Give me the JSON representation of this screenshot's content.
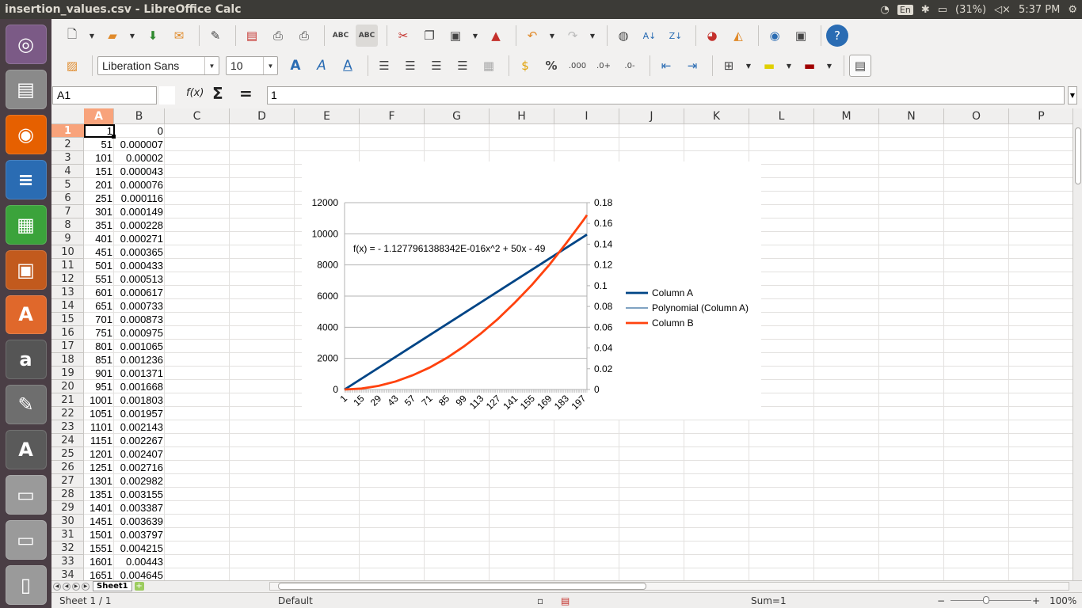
{
  "window": {
    "title": "insertion_values.csv - LibreOffice Calc"
  },
  "system": {
    "keyboard": "En",
    "battery": "(31%)",
    "time": "5:37 PM"
  },
  "launcher": {
    "items": [
      {
        "name": "ubuntu-dash-icon",
        "glyph": "◎",
        "color": "#7b5a86"
      },
      {
        "name": "files-icon",
        "glyph": "▤",
        "color": "#8a8a8a"
      },
      {
        "name": "firefox-icon",
        "glyph": "◉",
        "color": "#e66000"
      },
      {
        "name": "writer-icon",
        "glyph": "≡",
        "color": "#2a6cb3"
      },
      {
        "name": "calc-icon",
        "glyph": "▦",
        "color": "#3ba33b"
      },
      {
        "name": "impress-icon",
        "glyph": "▣",
        "color": "#c25a1d"
      },
      {
        "name": "software-center-icon",
        "glyph": "A",
        "color": "#e0682b"
      },
      {
        "name": "amazon-icon",
        "glyph": "a",
        "color": "#555555"
      },
      {
        "name": "system-settings-icon",
        "glyph": "✎",
        "color": "#6e6e6e"
      },
      {
        "name": "software-updater-icon",
        "glyph": "A",
        "color": "#5a5a5a"
      },
      {
        "name": "drive-icon-1",
        "glyph": "▭",
        "color": "#9a9a9a"
      },
      {
        "name": "drive-icon-2",
        "glyph": "▭",
        "color": "#9a9a9a"
      },
      {
        "name": "trash-icon",
        "glyph": "▯",
        "color": "#9a9a9a"
      }
    ]
  },
  "format_bar": {
    "font_name": "Liberation Sans",
    "font_size": "10"
  },
  "formula_bar": {
    "cell_ref": "A1",
    "content": "1",
    "function_wizard": "f(x)",
    "sum": "Σ",
    "equals": "="
  },
  "columns": [
    "A",
    "B",
    "C",
    "D",
    "E",
    "F",
    "G",
    "H",
    "I",
    "J",
    "K",
    "L",
    "M",
    "N",
    "O",
    "P"
  ],
  "rows": [
    [
      "1",
      "0"
    ],
    [
      "51",
      "0.000007"
    ],
    [
      "101",
      "0.00002"
    ],
    [
      "151",
      "0.000043"
    ],
    [
      "201",
      "0.000076"
    ],
    [
      "251",
      "0.000116"
    ],
    [
      "301",
      "0.000149"
    ],
    [
      "351",
      "0.000228"
    ],
    [
      "401",
      "0.000271"
    ],
    [
      "451",
      "0.000365"
    ],
    [
      "501",
      "0.000433"
    ],
    [
      "551",
      "0.000513"
    ],
    [
      "601",
      "0.000617"
    ],
    [
      "651",
      "0.000733"
    ],
    [
      "701",
      "0.000873"
    ],
    [
      "751",
      "0.000975"
    ],
    [
      "801",
      "0.001065"
    ],
    [
      "851",
      "0.001236"
    ],
    [
      "901",
      "0.001371"
    ],
    [
      "951",
      "0.001668"
    ],
    [
      "1001",
      "0.001803"
    ],
    [
      "1051",
      "0.001957"
    ],
    [
      "1101",
      "0.002143"
    ],
    [
      "1151",
      "0.002267"
    ],
    [
      "1201",
      "0.002407"
    ],
    [
      "1251",
      "0.002716"
    ],
    [
      "1301",
      "0.002982"
    ],
    [
      "1351",
      "0.003155"
    ],
    [
      "1401",
      "0.003387"
    ],
    [
      "1451",
      "0.003639"
    ],
    [
      "1501",
      "0.003797"
    ],
    [
      "1551",
      "0.004215"
    ],
    [
      "1601",
      "0.00443"
    ],
    [
      "1651",
      "0.004645"
    ]
  ],
  "chart_data": {
    "type": "line",
    "title": "",
    "trendline_label": "f(x) =  - 1.1277961388342E-016x^2 + 50x - 49",
    "x": {
      "ticks": [
        "1",
        "15",
        "29",
        "43",
        "57",
        "71",
        "85",
        "99",
        "113",
        "127",
        "141",
        "155",
        "169",
        "183",
        "197"
      ],
      "range": [
        1,
        200
      ]
    },
    "y_left": {
      "ticks": [
        "0",
        "2000",
        "4000",
        "6000",
        "8000",
        "10000",
        "12000"
      ],
      "range": [
        0,
        12000
      ]
    },
    "y_right": {
      "ticks": [
        "0",
        "0.02",
        "0.04",
        "0.06",
        "0.08",
        "0.1",
        "0.12",
        "0.14",
        "0.16",
        "0.18"
      ],
      "range": [
        0,
        0.18
      ]
    },
    "series": [
      {
        "name": "Column A",
        "color": "#004586",
        "axis": "left",
        "points": [
          [
            1,
            1
          ],
          [
            200,
            9951
          ]
        ]
      },
      {
        "name": "Polynomial (Column A)",
        "color": "#004586",
        "axis": "left",
        "trend": true,
        "points": [
          [
            1,
            1
          ],
          [
            200,
            9951
          ]
        ]
      },
      {
        "name": "Column B",
        "color": "#ff420e",
        "axis": "right",
        "points": [
          [
            1,
            0
          ],
          [
            15,
            0.0009
          ],
          [
            29,
            0.0035
          ],
          [
            43,
            0.0078
          ],
          [
            57,
            0.0137
          ],
          [
            71,
            0.0212
          ],
          [
            85,
            0.0305
          ],
          [
            99,
            0.0415
          ],
          [
            113,
            0.054
          ],
          [
            127,
            0.068
          ],
          [
            141,
            0.084
          ],
          [
            155,
            0.101
          ],
          [
            169,
            0.12
          ],
          [
            183,
            0.141
          ],
          [
            197,
            0.163
          ],
          [
            200,
            0.168
          ]
        ]
      }
    ],
    "legend_position": "right"
  },
  "sheets": {
    "active": "Sheet1"
  },
  "statusbar": {
    "sheet": "Sheet 1 / 1",
    "style": "Default",
    "sum": "Sum=1",
    "zoom": "100%"
  }
}
